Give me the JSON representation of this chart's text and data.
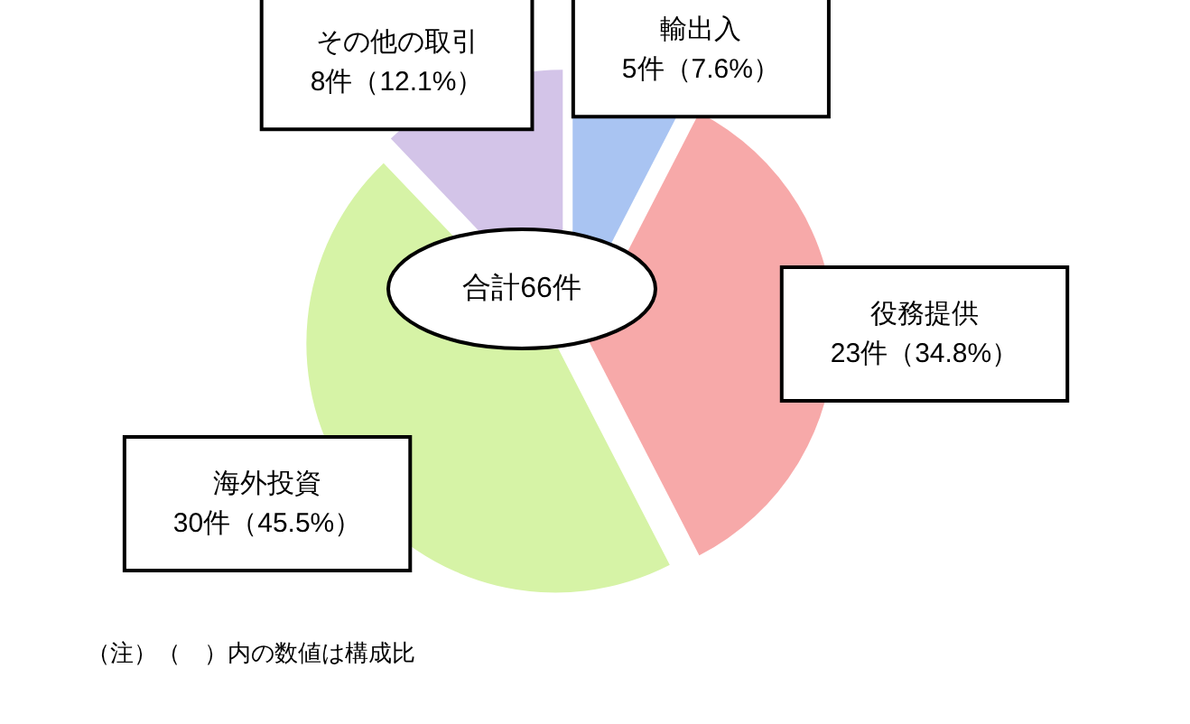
{
  "chart_data": {
    "type": "pie",
    "categories": [
      "輸出入",
      "役務提供",
      "海外投資",
      "その他の取引"
    ],
    "values": [
      5,
      23,
      30,
      8
    ],
    "colors": [
      "#a9c4f2",
      "#f7a9a9",
      "#d6f3a6",
      "#d3c4e8"
    ],
    "value_labels": [
      "5件（7.6%）",
      "23件（34.8%）",
      "30件（45.5%）",
      "8件（12.1%）"
    ],
    "annotations": [
      "合計66件",
      "（注）（　）内の数値は構成比"
    ]
  }
}
